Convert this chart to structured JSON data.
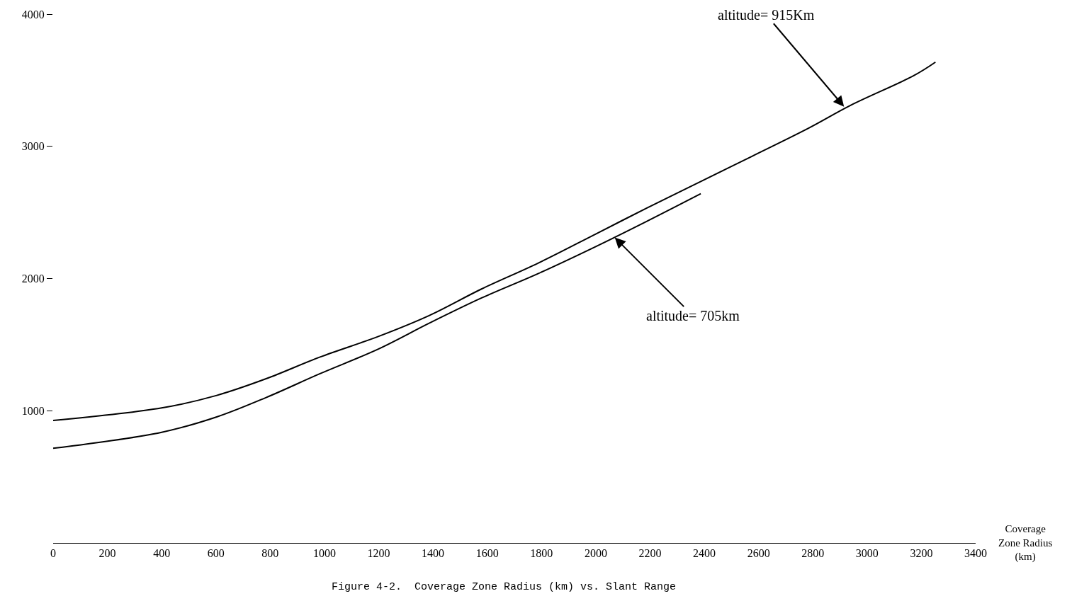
{
  "chart_data": {
    "type": "line",
    "xlabel": "Coverage Zone Radius (km)",
    "x": [
      0,
      400,
      603,
      785,
      982,
      1200,
      1387,
      1579,
      1787,
      2000,
      2187,
      2395,
      2577,
      2784,
      2940,
      3174,
      3252
    ],
    "series": [
      {
        "color": "#000000",
        "values": [
          926,
          1021,
          1116,
          1242,
          1405,
          1563,
          1721,
          1921,
          2116,
          2337,
          2532,
          2742,
          2926,
          3137,
          3311,
          3537,
          3637
        ]
      },
      {
        "color": "#000000",
        "x": [
          0,
          400,
          603,
          785,
          982,
          1200,
          1387,
          1579,
          1787,
          2000,
          2187,
          2387
        ],
        "values": [
          716,
          837,
          953,
          1100,
          1279,
          1468,
          1663,
          1853,
          2037,
          2242,
          2432,
          2642
        ]
      }
    ],
    "annotations": [
      {
        "text": "altitude= 915Km",
        "x": 2915,
        "y": 3300
      },
      {
        "text": "altitude= 705km",
        "x": 2070,
        "y": 2310
      },
      "Figure 4-2.  Coverage Zone Radius (km) vs. Slant Range"
    ],
    "xlim": [
      0,
      3400
    ],
    "ylim": [
      0,
      4000
    ],
    "xticks": [
      0,
      200,
      400,
      600,
      800,
      1000,
      1200,
      1400,
      1600,
      1800,
      2000,
      2200,
      2400,
      2600,
      2800,
      3000,
      3200,
      3400
    ],
    "yticks": [
      1000,
      2000,
      3000,
      4000
    ],
    "marker": "none",
    "line_style": "solid"
  }
}
